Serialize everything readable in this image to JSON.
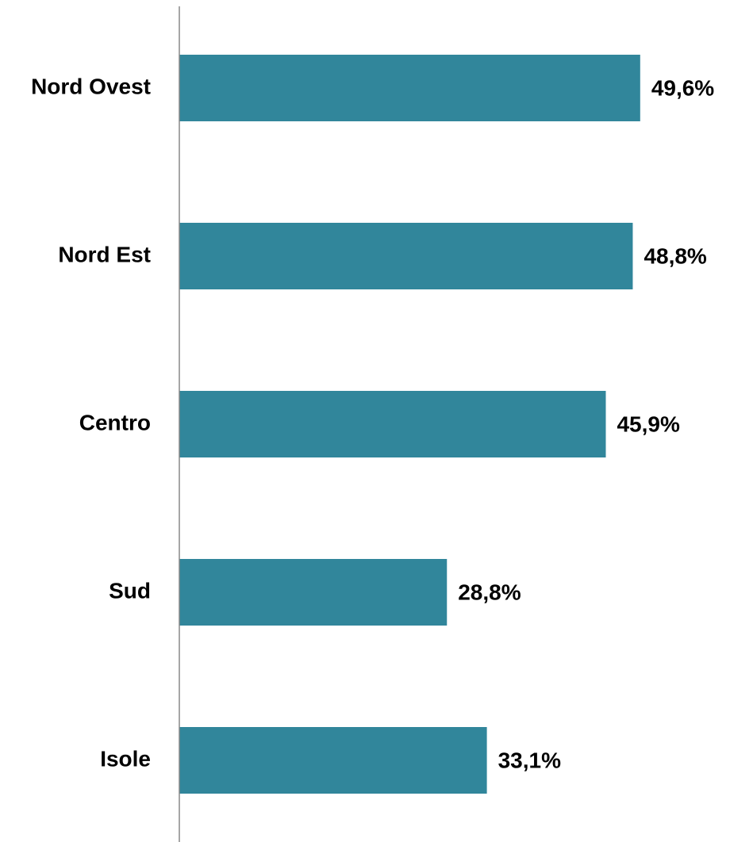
{
  "chart_data": {
    "type": "hbar",
    "categories": [
      "Nord Ovest",
      "Nord Est",
      "Centro",
      "Sud",
      "Isole"
    ],
    "values": [
      49.6,
      48.8,
      45.9,
      28.8,
      33.1
    ],
    "value_labels": [
      "49,6%",
      "48,8%",
      "45,9%",
      "28,8%",
      "33,1%"
    ],
    "color": "#31869b",
    "xlim": [
      0,
      50
    ]
  }
}
